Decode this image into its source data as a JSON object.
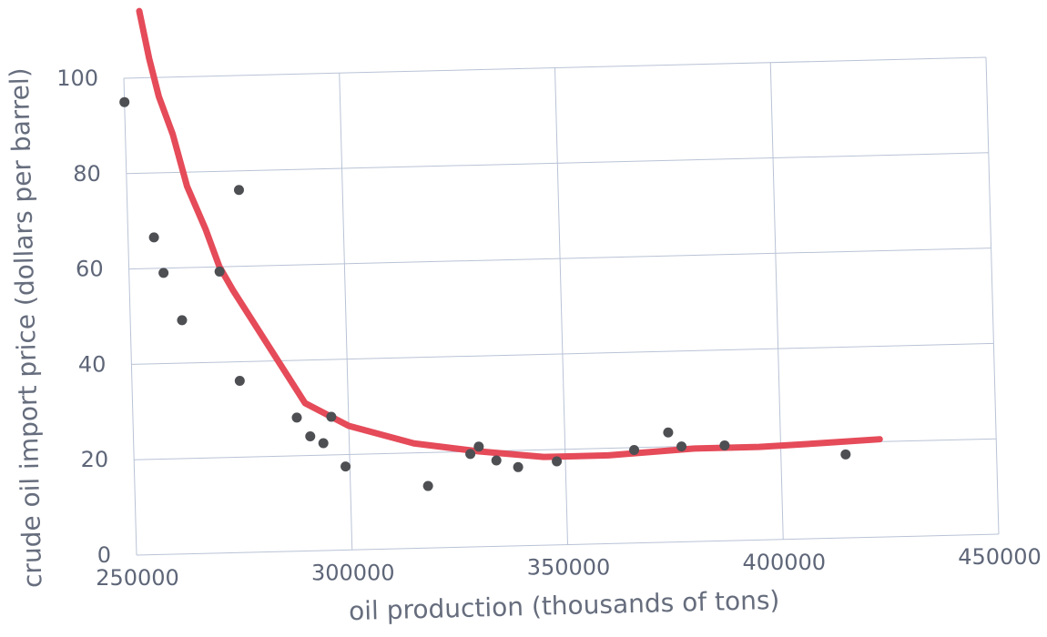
{
  "chart_data": {
    "type": "scatter",
    "title": "",
    "xlabel": "oil production (thousands of tons)",
    "ylabel": "crude oil import price (dollars per barrel)",
    "xlim": [
      250000,
      450000
    ],
    "ylim": [
      0,
      100
    ],
    "x_ticks": [
      250000,
      300000,
      350000,
      400000,
      450000
    ],
    "y_ticks": [
      0,
      20,
      40,
      60,
      80,
      100
    ],
    "grid": true,
    "colors": {
      "points": "#4d4f53",
      "curve": "#e54b59",
      "grid": "#b9c3d6",
      "tick_text": "#5e6678",
      "axis_text": "#666d7d"
    },
    "series": [
      {
        "values": [
          {
            "x": 250000,
            "y": 95
          },
          {
            "x": 256000,
            "y": 66.5
          },
          {
            "x": 258000,
            "y": 59
          },
          {
            "x": 262000,
            "y": 49
          },
          {
            "x": 271000,
            "y": 59
          },
          {
            "x": 275000,
            "y": 36
          },
          {
            "x": 276000,
            "y": 76
          },
          {
            "x": 288000,
            "y": 28
          },
          {
            "x": 291000,
            "y": 24
          },
          {
            "x": 294000,
            "y": 22.5
          },
          {
            "x": 296000,
            "y": 28
          },
          {
            "x": 299000,
            "y": 17.5
          },
          {
            "x": 318000,
            "y": 13
          },
          {
            "x": 328000,
            "y": 19.5
          },
          {
            "x": 330000,
            "y": 21
          },
          {
            "x": 334000,
            "y": 18
          },
          {
            "x": 339000,
            "y": 16.5
          },
          {
            "x": 348000,
            "y": 17.5
          },
          {
            "x": 366000,
            "y": 19.5
          },
          {
            "x": 374000,
            "y": 23
          },
          {
            "x": 377000,
            "y": 20
          },
          {
            "x": 387000,
            "y": 20
          },
          {
            "x": 415000,
            "y": 17.5
          }
        ]
      }
    ],
    "trend_curve": [
      {
        "x": 254000,
        "y": 114
      },
      {
        "x": 256000,
        "y": 104
      },
      {
        "x": 258000,
        "y": 96
      },
      {
        "x": 261000,
        "y": 88
      },
      {
        "x": 264000,
        "y": 77
      },
      {
        "x": 268000,
        "y": 68
      },
      {
        "x": 271000,
        "y": 60
      },
      {
        "x": 274000,
        "y": 55
      },
      {
        "x": 278000,
        "y": 49
      },
      {
        "x": 282000,
        "y": 43
      },
      {
        "x": 286000,
        "y": 37
      },
      {
        "x": 290000,
        "y": 31
      },
      {
        "x": 300000,
        "y": 26
      },
      {
        "x": 315000,
        "y": 22
      },
      {
        "x": 330000,
        "y": 20
      },
      {
        "x": 345000,
        "y": 18.5
      },
      {
        "x": 360000,
        "y": 18.5
      },
      {
        "x": 370000,
        "y": 19
      },
      {
        "x": 380000,
        "y": 19.5
      },
      {
        "x": 395000,
        "y": 19.5
      },
      {
        "x": 410000,
        "y": 20
      },
      {
        "x": 423000,
        "y": 20.5
      }
    ]
  }
}
